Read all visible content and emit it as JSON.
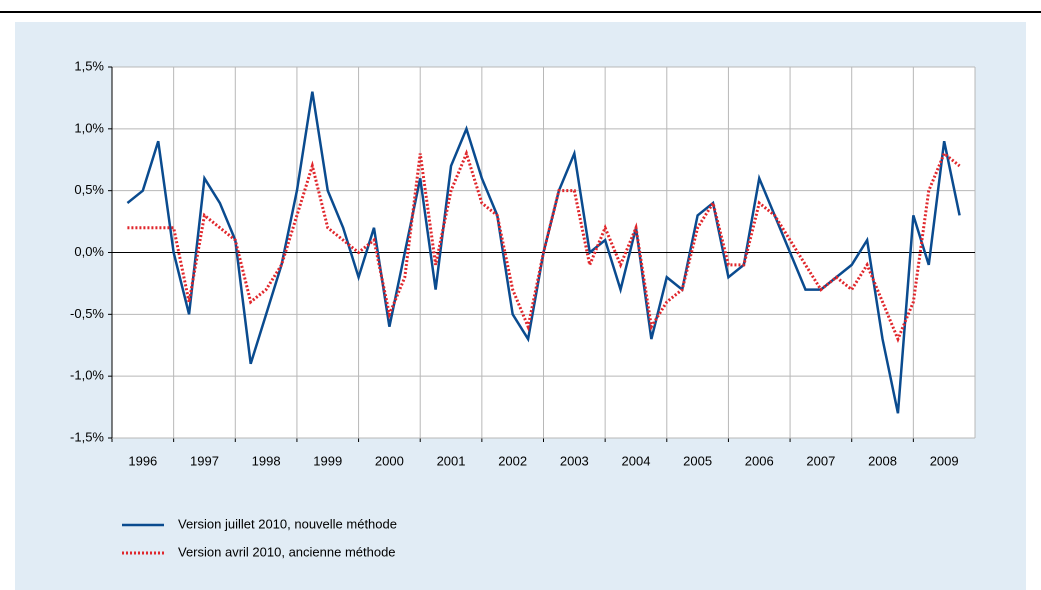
{
  "chart_data": {
    "type": "line",
    "x": [
      1996.25,
      1996.5,
      1996.75,
      1997,
      1997.25,
      1997.5,
      1997.75,
      1998,
      1998.25,
      1998.5,
      1998.75,
      1999,
      1999.25,
      1999.5,
      1999.75,
      2000,
      2000.25,
      2000.5,
      2000.75,
      2001,
      2001.25,
      2001.5,
      2001.75,
      2002,
      2002.25,
      2002.5,
      2002.75,
      2003,
      2003.25,
      2003.5,
      2003.75,
      2004,
      2004.25,
      2004.5,
      2004.75,
      2005,
      2005.25,
      2005.5,
      2005.75,
      2006,
      2006.25,
      2006.5,
      2006.75,
      2007,
      2007.25,
      2007.5,
      2007.75,
      2008,
      2008.25,
      2008.5,
      2008.75,
      2009,
      2009.25,
      2009.5,
      2009.75
    ],
    "xlim": [
      1996,
      2010
    ],
    "xticks": [
      1996,
      1997,
      1998,
      1999,
      2000,
      2001,
      2002,
      2003,
      2004,
      2005,
      2006,
      2007,
      2008,
      2009
    ],
    "ylim": [
      -1.5,
      1.5
    ],
    "yticks": [
      {
        "value": -1.5,
        "label": "-1,5%"
      },
      {
        "value": -1,
        "label": "-1,0%"
      },
      {
        "value": -0.5,
        "label": "-0,5%"
      },
      {
        "value": 0,
        "label": "0,0%"
      },
      {
        "value": 0.5,
        "label": "0,5%"
      },
      {
        "value": 1,
        "label": "1,0%"
      },
      {
        "value": 1.5,
        "label": "1,5%"
      }
    ],
    "grid": true,
    "series": [
      {
        "name": "Version juillet 2010, nouvelle méthode",
        "color": "#0a4b8f",
        "style": "solid",
        "values": [
          0.4,
          0.5,
          0.9,
          0.0,
          -0.5,
          0.6,
          0.4,
          0.1,
          -0.9,
          -0.5,
          -0.1,
          0.5,
          1.3,
          0.5,
          0.2,
          -0.2,
          0.2,
          -0.6,
          0.0,
          0.6,
          -0.3,
          0.7,
          1.0,
          0.6,
          0.3,
          -0.5,
          -0.7,
          0.0,
          0.5,
          0.8,
          0.0,
          0.1,
          -0.3,
          0.2,
          -0.7,
          -0.2,
          -0.3,
          0.3,
          0.4,
          -0.2,
          -0.1,
          0.6,
          0.3,
          0.0,
          -0.3,
          -0.3,
          -0.2,
          -0.1,
          0.1,
          -0.7,
          -1.3,
          0.3,
          -0.1,
          0.9,
          0.3
        ]
      },
      {
        "name": "Version avril 2010, ancienne méthode",
        "color": "#e0262b",
        "style": "dotted",
        "values": [
          0.2,
          0.2,
          0.2,
          0.2,
          -0.4,
          0.3,
          0.2,
          0.1,
          -0.4,
          -0.3,
          -0.1,
          0.3,
          0.7,
          0.2,
          0.1,
          0.0,
          0.1,
          -0.5,
          -0.2,
          0.8,
          -0.1,
          0.5,
          0.8,
          0.4,
          0.3,
          -0.3,
          -0.6,
          0.0,
          0.5,
          0.5,
          -0.1,
          0.2,
          -0.1,
          0.2,
          -0.6,
          -0.4,
          -0.3,
          0.2,
          0.4,
          -0.1,
          -0.1,
          0.4,
          0.3,
          0.1,
          -0.1,
          -0.3,
          -0.2,
          -0.3,
          -0.1,
          -0.4,
          -0.7,
          -0.4,
          0.5,
          0.8,
          0.7
        ]
      }
    ]
  }
}
